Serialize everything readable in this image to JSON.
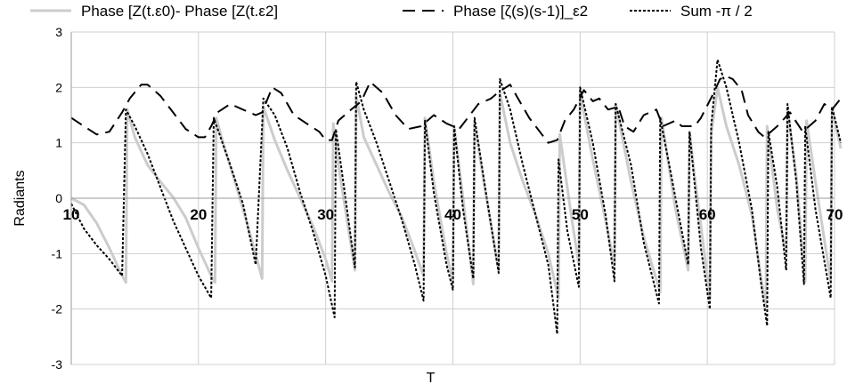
{
  "chart_data": {
    "type": "line",
    "title": "",
    "xlabel": "T",
    "ylabel": "Radiants",
    "xlim": [
      10,
      70
    ],
    "ylim": [
      -3,
      3
    ],
    "x_ticks": [
      10,
      20,
      30,
      40,
      50,
      60,
      70
    ],
    "y_ticks": [
      3,
      2,
      1,
      0,
      -1,
      -2,
      -3
    ],
    "grid": true,
    "legend_position": "top",
    "series": [
      {
        "name": "Phase [Z(t.ε0)- Phase [Z(t.ε2]",
        "style": "solid",
        "color": "#cccccc",
        "points": [
          [
            10,
            0.0
          ],
          [
            11,
            -0.12
          ],
          [
            12,
            -0.45
          ],
          [
            13,
            -0.9
          ],
          [
            14,
            -1.4
          ],
          [
            14.3,
            -1.52
          ],
          [
            14.4,
            1.6
          ],
          [
            15,
            1.1
          ],
          [
            16,
            0.6
          ],
          [
            17,
            0.3
          ],
          [
            18,
            0.02
          ],
          [
            19,
            -0.35
          ],
          [
            20,
            -0.9
          ],
          [
            21,
            -1.4
          ],
          [
            21.3,
            -1.52
          ],
          [
            21.4,
            1.45
          ],
          [
            22,
            0.95
          ],
          [
            23,
            0.2
          ],
          [
            24,
            -0.6
          ],
          [
            25.0,
            -1.45
          ],
          [
            25.1,
            1.65
          ],
          [
            26,
            1.05
          ],
          [
            27,
            0.5
          ],
          [
            28,
            0.0
          ],
          [
            29,
            -0.5
          ],
          [
            30,
            -1.1
          ],
          [
            30.5,
            -1.5
          ],
          [
            30.6,
            1.35
          ],
          [
            31,
            0.6
          ],
          [
            32.3,
            -1.3
          ],
          [
            32.4,
            1.85
          ],
          [
            33,
            1.1
          ],
          [
            34,
            0.6
          ],
          [
            35,
            0.1
          ],
          [
            36,
            -0.35
          ],
          [
            37,
            -0.95
          ],
          [
            37.7,
            -1.4
          ],
          [
            37.8,
            1.45
          ],
          [
            38.5,
            0.3
          ],
          [
            39.5,
            -1.0
          ],
          [
            40,
            -1.5
          ],
          [
            40.1,
            1.3
          ],
          [
            40.8,
            0.0
          ],
          [
            41.6,
            -1.55
          ],
          [
            41.7,
            1.35
          ],
          [
            42.5,
            0.2
          ],
          [
            43.6,
            -1.3
          ],
          [
            43.7,
            1.9
          ],
          [
            44.5,
            1.0
          ],
          [
            45.5,
            0.3
          ],
          [
            46.5,
            -0.3
          ],
          [
            47.5,
            -1.0
          ],
          [
            48.3,
            -1.8
          ],
          [
            48.4,
            1.15
          ],
          [
            49.3,
            -0.3
          ],
          [
            49.9,
            -1.2
          ],
          [
            50.0,
            1.9
          ],
          [
            51,
            0.7
          ],
          [
            52,
            -0.4
          ],
          [
            52.7,
            -1.2
          ],
          [
            52.8,
            1.7
          ],
          [
            54,
            0.3
          ],
          [
            55,
            -0.7
          ],
          [
            56.3,
            -1.7
          ],
          [
            56.4,
            1.45
          ],
          [
            57.5,
            -0.2
          ],
          [
            58.5,
            -1.3
          ],
          [
            58.6,
            1.2
          ],
          [
            59,
            0.4
          ],
          [
            59.5,
            -0.5
          ],
          [
            60.2,
            -1.8
          ],
          [
            60.3,
            1.15
          ],
          [
            60.8,
            2.0
          ],
          [
            61.5,
            1.3
          ],
          [
            62.5,
            0.6
          ],
          [
            63.5,
            -0.3
          ],
          [
            64.2,
            -1.4
          ],
          [
            64.6,
            -2.0
          ],
          [
            64.7,
            1.3
          ],
          [
            65.5,
            -0.2
          ],
          [
            66.2,
            -1.0
          ],
          [
            66.3,
            1.6
          ],
          [
            67,
            0.4
          ],
          [
            67.7,
            -1.5
          ],
          [
            67.8,
            1.4
          ],
          [
            68.5,
            0.3
          ],
          [
            69.7,
            -1.5
          ],
          [
            69.8,
            1.6
          ],
          [
            70.5,
            0.9
          ]
        ]
      },
      {
        "name": "Phase [ζ(s)(s-1)]_ε2",
        "style": "dashed",
        "color": "#000000",
        "points": [
          [
            10,
            1.45
          ],
          [
            11,
            1.3
          ],
          [
            12,
            1.15
          ],
          [
            13,
            1.2
          ],
          [
            14,
            1.55
          ],
          [
            14.6,
            1.8
          ],
          [
            15.5,
            2.05
          ],
          [
            16,
            2.05
          ],
          [
            17,
            1.85
          ],
          [
            18,
            1.55
          ],
          [
            19,
            1.25
          ],
          [
            20,
            1.1
          ],
          [
            20.5,
            1.1
          ],
          [
            21,
            1.3
          ],
          [
            21.5,
            1.55
          ],
          [
            22.5,
            1.7
          ],
          [
            23.5,
            1.6
          ],
          [
            24.5,
            1.5
          ],
          [
            25,
            1.55
          ],
          [
            25.8,
            2.0
          ],
          [
            26.5,
            1.9
          ],
          [
            27.5,
            1.5
          ],
          [
            28.5,
            1.35
          ],
          [
            29.5,
            1.2
          ],
          [
            30,
            1.05
          ],
          [
            30.5,
            1.05
          ],
          [
            31,
            1.4
          ],
          [
            32,
            1.6
          ],
          [
            32.8,
            1.75
          ],
          [
            33.5,
            2.1
          ],
          [
            34.5,
            1.9
          ],
          [
            35.5,
            1.5
          ],
          [
            36.5,
            1.25
          ],
          [
            37.5,
            1.3
          ],
          [
            38.5,
            1.5
          ],
          [
            39.5,
            1.35
          ],
          [
            40.5,
            1.25
          ],
          [
            41,
            1.4
          ],
          [
            42,
            1.7
          ],
          [
            43,
            1.8
          ],
          [
            43.5,
            1.9
          ],
          [
            44.5,
            2.05
          ],
          [
            45,
            1.85
          ],
          [
            46,
            1.45
          ],
          [
            47,
            1.15
          ],
          [
            47.5,
            1.0
          ],
          [
            48.2,
            1.05
          ],
          [
            48.8,
            1.4
          ],
          [
            49.5,
            1.6
          ],
          [
            50.3,
            1.95
          ],
          [
            51,
            1.75
          ],
          [
            51.5,
            1.8
          ],
          [
            52.2,
            1.6
          ],
          [
            53,
            1.65
          ],
          [
            53.5,
            1.3
          ],
          [
            54.2,
            1.2
          ],
          [
            55,
            1.5
          ],
          [
            56,
            1.6
          ],
          [
            56.5,
            1.3
          ],
          [
            57.5,
            1.4
          ],
          [
            58,
            1.3
          ],
          [
            59,
            1.3
          ],
          [
            59.5,
            1.45
          ],
          [
            60.5,
            1.9
          ],
          [
            61,
            2.15
          ],
          [
            61.5,
            2.2
          ],
          [
            62,
            2.15
          ],
          [
            62.7,
            1.95
          ],
          [
            63.2,
            1.5
          ],
          [
            64,
            1.2
          ],
          [
            64.5,
            1.1
          ],
          [
            65.5,
            1.3
          ],
          [
            66.5,
            1.55
          ],
          [
            67.5,
            1.2
          ],
          [
            68.5,
            1.4
          ],
          [
            69.2,
            1.7
          ],
          [
            69.8,
            1.6
          ],
          [
            70.5,
            1.8
          ]
        ]
      },
      {
        "name": "Sum -π / 2",
        "style": "dotted",
        "color": "#000000",
        "points": [
          [
            10,
            -0.1
          ],
          [
            11,
            -0.55
          ],
          [
            12,
            -0.85
          ],
          [
            13,
            -1.1
          ],
          [
            14,
            -1.4
          ],
          [
            14.3,
            1.6
          ],
          [
            15,
            1.3
          ],
          [
            16,
            0.8
          ],
          [
            17,
            0.2
          ],
          [
            18,
            -0.4
          ],
          [
            19,
            -0.9
          ],
          [
            20,
            -1.4
          ],
          [
            21,
            -1.8
          ],
          [
            21.2,
            1.45
          ],
          [
            22.5,
            0.6
          ],
          [
            23.5,
            -0.1
          ],
          [
            24.5,
            -1.2
          ],
          [
            25.1,
            1.8
          ],
          [
            26,
            1.5
          ],
          [
            27,
            0.9
          ],
          [
            28,
            0.1
          ],
          [
            29,
            -0.6
          ],
          [
            30,
            -1.4
          ],
          [
            30.7,
            -2.15
          ],
          [
            30.8,
            1.25
          ],
          [
            31.5,
            0.1
          ],
          [
            32.3,
            -1.25
          ],
          [
            32.4,
            2.1
          ],
          [
            33,
            1.6
          ],
          [
            34,
            1.0
          ],
          [
            35,
            0.3
          ],
          [
            36,
            -0.4
          ],
          [
            37,
            -1.2
          ],
          [
            37.7,
            -1.85
          ],
          [
            37.8,
            1.4
          ],
          [
            38.5,
            0.1
          ],
          [
            39.5,
            -1.2
          ],
          [
            40,
            -1.65
          ],
          [
            40.1,
            1.3
          ],
          [
            40.8,
            -0.2
          ],
          [
            41.6,
            -1.45
          ],
          [
            41.7,
            1.45
          ],
          [
            42.6,
            0.1
          ],
          [
            43.6,
            -1.35
          ],
          [
            43.7,
            2.15
          ],
          [
            44.5,
            1.6
          ],
          [
            45.5,
            0.6
          ],
          [
            46.5,
            -0.3
          ],
          [
            47.5,
            -1.2
          ],
          [
            48.2,
            -2.45
          ],
          [
            48.3,
            0.7
          ],
          [
            49,
            -0.6
          ],
          [
            49.9,
            -1.6
          ],
          [
            50,
            2.0
          ],
          [
            51,
            1.0
          ],
          [
            52,
            -0.3
          ],
          [
            52.7,
            -1.5
          ],
          [
            52.8,
            1.7
          ],
          [
            54,
            0.6
          ],
          [
            55,
            -0.8
          ],
          [
            56.2,
            -1.9
          ],
          [
            56.3,
            1.45
          ],
          [
            57.5,
            0.0
          ],
          [
            58.5,
            -1.2
          ],
          [
            58.6,
            1.2
          ],
          [
            59.5,
            -0.9
          ],
          [
            60.2,
            -2.0
          ],
          [
            60.3,
            1.3
          ],
          [
            60.8,
            2.5
          ],
          [
            61.5,
            2.0
          ],
          [
            62.5,
            1.0
          ],
          [
            63.5,
            -0.2
          ],
          [
            64.2,
            -1.5
          ],
          [
            64.7,
            -2.3
          ],
          [
            64.8,
            1.2
          ],
          [
            65.5,
            0.2
          ],
          [
            66.2,
            -1.3
          ],
          [
            66.3,
            1.7
          ],
          [
            67,
            0.3
          ],
          [
            67.6,
            -1.55
          ],
          [
            67.7,
            1.3
          ],
          [
            68.5,
            -0.2
          ],
          [
            69.7,
            -1.8
          ],
          [
            69.8,
            1.65
          ],
          [
            70.5,
            1.0
          ]
        ]
      }
    ]
  }
}
